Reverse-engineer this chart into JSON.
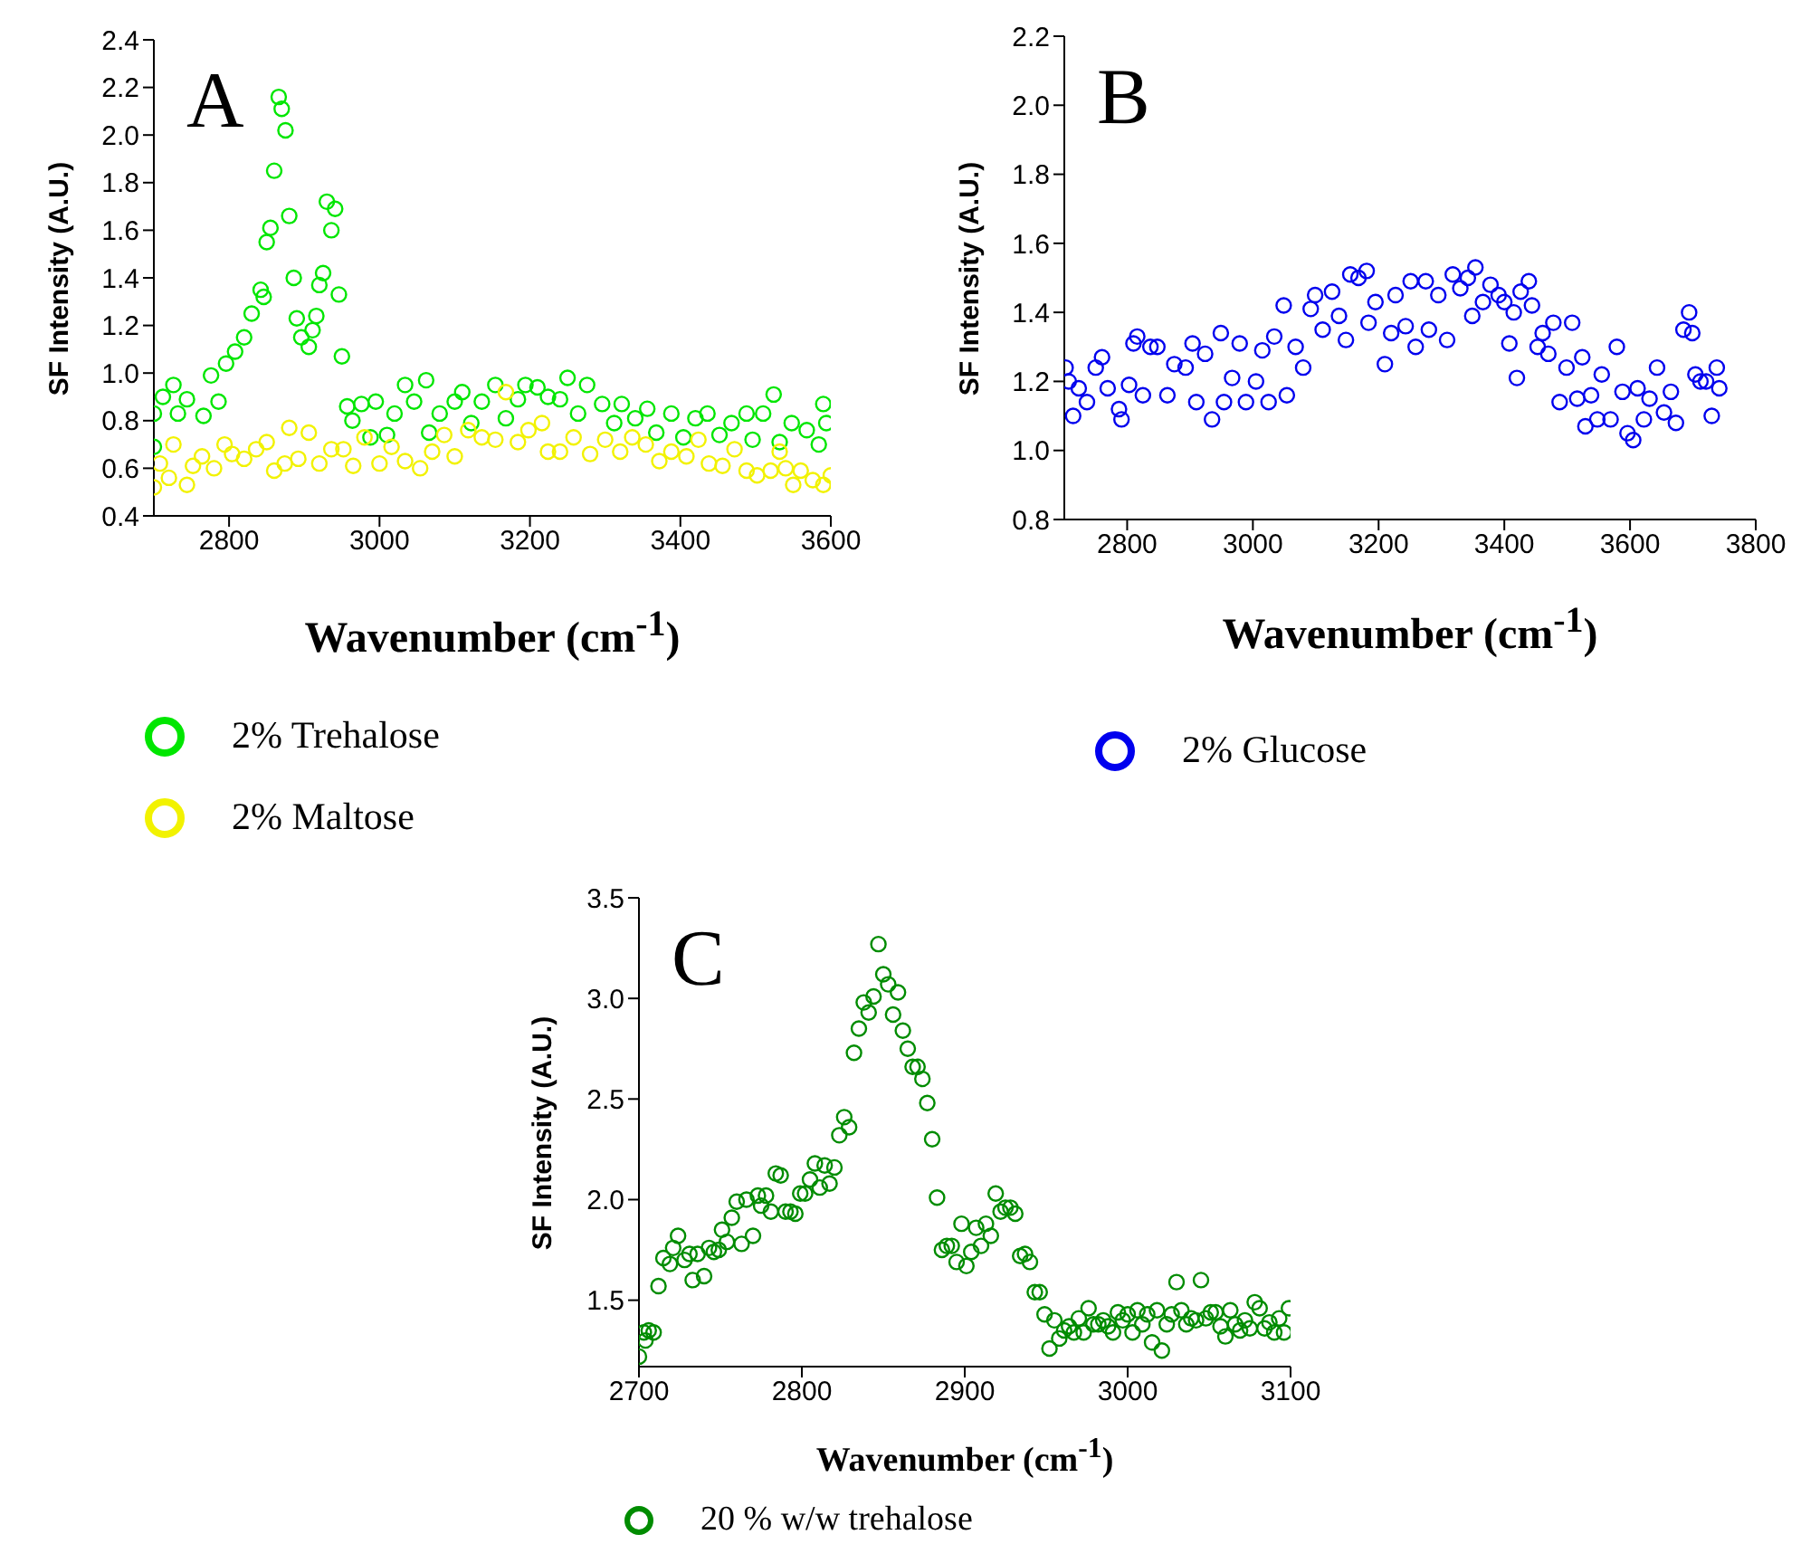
{
  "chart_data": [
    {
      "type": "scatter",
      "xlabel": "Wavenumber (cm$^{-1}$)",
      "ylabel": "SF Intensity (A.U.)",
      "annotations": [
        "A"
      ],
      "marker": "circle",
      "legend": "bottom left",
      "xlim": [
        2700,
        3600
      ],
      "xticks": [
        2800,
        3000,
        3200,
        3400,
        3600
      ],
      "ylim": [
        0.4,
        2.4
      ],
      "yticks": [
        0.4,
        0.6,
        0.8,
        {
          "value": 1,
          "label": "1.0"
        },
        1.2,
        1.4,
        1.6,
        1.8,
        {
          "value": 2,
          "label": "2.0"
        },
        2.2,
        2.4
      ],
      "series": [
        {
          "name": "2% Trehalose",
          "color": "#00e600",
          "x": [
            2700,
            2700,
            2712,
            2726,
            2732,
            2744,
            2766,
            2776,
            2786,
            2796,
            2808,
            2820,
            2830,
            2842,
            2846,
            2850,
            2855,
            2860,
            2866,
            2870,
            2875,
            2880,
            2886,
            2890,
            2896,
            2906,
            2911,
            2916,
            2920,
            2925,
            2930,
            2936,
            2941,
            2946,
            2950,
            2957,
            2964,
            2976,
            2988,
            2995,
            3010,
            3020,
            3034,
            3046,
            3062,
            3066,
            3080,
            3100,
            3110,
            3122,
            3136,
            3154,
            3168,
            3184,
            3194,
            3210,
            3224,
            3240,
            3250,
            3264,
            3276,
            3296,
            3312,
            3322,
            3340,
            3356,
            3368,
            3388,
            3404,
            3420,
            3436,
            3452,
            3468,
            3488,
            3496,
            3510,
            3524,
            3532,
            3548,
            3568,
            3584,
            3590,
            3594
          ],
          "values": [
            0.69,
            0.83,
            0.9,
            0.95,
            0.83,
            0.89,
            0.82,
            0.99,
            0.88,
            1.04,
            1.09,
            1.15,
            1.25,
            1.35,
            1.32,
            1.55,
            1.61,
            1.85,
            2.16,
            2.11,
            2.02,
            1.66,
            1.4,
            1.23,
            1.15,
            1.11,
            1.18,
            1.24,
            1.37,
            1.42,
            1.72,
            1.6,
            1.69,
            1.33,
            1.07,
            0.86,
            0.8,
            0.87,
            0.73,
            0.88,
            0.74,
            0.83,
            0.95,
            0.88,
            0.97,
            0.75,
            0.83,
            0.88,
            0.92,
            0.79,
            0.88,
            0.95,
            0.81,
            0.89,
            0.95,
            0.94,
            0.9,
            0.89,
            0.98,
            0.83,
            0.95,
            0.87,
            0.79,
            0.87,
            0.81,
            0.85,
            0.75,
            0.83,
            0.73,
            0.81,
            0.83,
            0.74,
            0.79,
            0.83,
            0.72,
            0.83,
            0.91,
            0.71,
            0.79,
            0.76,
            0.7,
            0.87,
            0.79
          ]
        },
        {
          "name": "2% Maltose",
          "color": "#f2f200",
          "x": [
            2700,
            2708,
            2720,
            2726,
            2744,
            2752,
            2764,
            2780,
            2794,
            2804,
            2820,
            2836,
            2850,
            2860,
            2874,
            2880,
            2892,
            2906,
            2920,
            2936,
            2952,
            2965,
            2980,
            3000,
            3016,
            3034,
            3054,
            3070,
            3086,
            3100,
            3118,
            3136,
            3154,
            3168,
            3184,
            3198,
            3216,
            3224,
            3240,
            3258,
            3280,
            3300,
            3320,
            3336,
            3354,
            3372,
            3388,
            3408,
            3424,
            3438,
            3456,
            3472,
            3488,
            3502,
            3520,
            3532,
            3540,
            3550,
            3560,
            3576,
            3590,
            3600
          ],
          "values": [
            0.52,
            0.62,
            0.56,
            0.7,
            0.53,
            0.61,
            0.65,
            0.6,
            0.7,
            0.66,
            0.64,
            0.68,
            0.71,
            0.59,
            0.62,
            0.77,
            0.64,
            0.75,
            0.62,
            0.68,
            0.68,
            0.61,
            0.73,
            0.62,
            0.69,
            0.63,
            0.6,
            0.67,
            0.74,
            0.65,
            0.76,
            0.73,
            0.72,
            0.92,
            0.71,
            0.76,
            0.79,
            0.67,
            0.67,
            0.73,
            0.66,
            0.72,
            0.67,
            0.73,
            0.7,
            0.63,
            0.67,
            0.65,
            0.72,
            0.62,
            0.61,
            0.68,
            0.59,
            0.57,
            0.59,
            0.67,
            0.6,
            0.53,
            0.59,
            0.55,
            0.53,
            0.57
          ]
        }
      ]
    },
    {
      "type": "scatter",
      "xlabel": "Wavenumber (cm$^{-1}$)",
      "ylabel": "SF Intensity (A.U.)",
      "annotations": [
        "B"
      ],
      "marker": "circle",
      "legend": "bottom left",
      "xlim": [
        2700,
        3800
      ],
      "xticks": [
        2800,
        3000,
        3200,
        3400,
        3600,
        3800
      ],
      "ylim": [
        0.8,
        2.2
      ],
      "yticks": [
        0.8,
        {
          "value": 1,
          "label": "1.0"
        },
        1.2,
        1.4,
        1.6,
        1.8,
        {
          "value": 2,
          "label": "2.0"
        },
        2.2
      ],
      "series": [
        {
          "name": "2% Glucose",
          "color": "#0000ee",
          "x": [
            2702,
            2707,
            2714,
            2723,
            2736,
            2750,
            2760,
            2769,
            2787,
            2791,
            2803,
            2810,
            2816,
            2825,
            2837,
            2848,
            2864,
            2875,
            2893,
            2904,
            2910,
            2924,
            2935,
            2949,
            2954,
            2967,
            2979,
            2989,
            3005,
            3015,
            3025,
            3034,
            3049,
            3054,
            3068,
            3080,
            3092,
            3099,
            3111,
            3126,
            3137,
            3148,
            3155,
            3168,
            3181,
            3184,
            3195,
            3210,
            3220,
            3227,
            3243,
            3251,
            3259,
            3275,
            3280,
            3295,
            3309,
            3318,
            3330,
            3342,
            3349,
            3354,
            3366,
            3378,
            3391,
            3400,
            3408,
            3415,
            3420,
            3426,
            3439,
            3444,
            3453,
            3461,
            3470,
            3478,
            3488,
            3499,
            3508,
            3516,
            3524,
            3529,
            3538,
            3548,
            3555,
            3569,
            3579,
            3588,
            3596,
            3605,
            3612,
            3622,
            3631,
            3643,
            3654,
            3665,
            3673,
            3685,
            3694,
            3699,
            3704,
            3712,
            3721,
            3730,
            3738,
            3742
          ],
          "values": [
            1.24,
            1.2,
            1.1,
            1.18,
            1.14,
            1.24,
            1.27,
            1.18,
            1.12,
            1.09,
            1.19,
            1.31,
            1.33,
            1.16,
            1.3,
            1.3,
            1.16,
            1.25,
            1.24,
            1.31,
            1.14,
            1.28,
            1.09,
            1.34,
            1.14,
            1.21,
            1.31,
            1.14,
            1.2,
            1.29,
            1.14,
            1.33,
            1.42,
            1.16,
            1.3,
            1.24,
            1.41,
            1.45,
            1.35,
            1.46,
            1.39,
            1.32,
            1.51,
            1.5,
            1.52,
            1.37,
            1.43,
            1.25,
            1.34,
            1.45,
            1.36,
            1.49,
            1.3,
            1.49,
            1.35,
            1.45,
            1.32,
            1.51,
            1.47,
            1.5,
            1.39,
            1.53,
            1.43,
            1.48,
            1.45,
            1.43,
            1.31,
            1.4,
            1.21,
            1.46,
            1.49,
            1.42,
            1.3,
            1.34,
            1.28,
            1.37,
            1.14,
            1.24,
            1.37,
            1.15,
            1.27,
            1.07,
            1.16,
            1.09,
            1.22,
            1.09,
            1.3,
            1.17,
            1.05,
            1.03,
            1.18,
            1.09,
            1.15,
            1.24,
            1.11,
            1.17,
            1.08,
            1.35,
            1.4,
            1.34,
            1.22,
            1.2,
            1.2,
            1.1,
            1.24,
            1.18
          ]
        }
      ]
    },
    {
      "type": "scatter",
      "xlabel": "Wavenumber (cm$^{-1}$)",
      "ylabel": "SF Intensity (A.U.)",
      "annotations": [
        "C"
      ],
      "marker": "circle",
      "legend": "bottom left",
      "xlim": [
        2700,
        3100
      ],
      "xticks": [
        2700,
        2800,
        2900,
        3000,
        3100
      ],
      "ylim": [
        1.17,
        3.5
      ],
      "yticks": [
        1.5,
        {
          "value": 2,
          "label": "2.0"
        },
        2.5,
        {
          "value": 3,
          "label": "3.0"
        },
        3.5
      ],
      "series": [
        {
          "name": "20 % w/w trehalose",
          "color": "#008c00",
          "x": [
            2700,
            2703,
            2704,
            2706,
            2709,
            2712,
            2715,
            2719,
            2721,
            2724,
            2728,
            2731,
            2733,
            2736,
            2740,
            2743,
            2746,
            2749,
            2751,
            2754,
            2757,
            2760,
            2763,
            2766,
            2770,
            2773,
            2775,
            2778,
            2781,
            2784,
            2787,
            2790,
            2793,
            2796,
            2799,
            2802,
            2805,
            2808,
            2811,
            2814,
            2817,
            2820,
            2823,
            2826,
            2829,
            2832,
            2835,
            2838,
            2841,
            2844,
            2847,
            2850,
            2853,
            2856,
            2859,
            2862,
            2865,
            2868,
            2871,
            2874,
            2877,
            2880,
            2883,
            2886,
            2889,
            2892,
            2895,
            2898,
            2901,
            2904,
            2907,
            2910,
            2913,
            2916,
            2919,
            2922,
            2925,
            2928,
            2931,
            2934,
            2937,
            2940,
            2943,
            2946,
            2949,
            2952,
            2955,
            2958,
            2961,
            2964,
            2967,
            2970,
            2973,
            2976,
            2979,
            2982,
            2985,
            2988,
            2991,
            2994,
            2997,
            3000,
            3003,
            3006,
            3009,
            3012,
            3015,
            3018,
            3021,
            3024,
            3027,
            3030,
            3033,
            3036,
            3039,
            3042,
            3045,
            3048,
            3051,
            3054,
            3057,
            3060,
            3063,
            3066,
            3069,
            3072,
            3075,
            3078,
            3081,
            3084,
            3087,
            3090,
            3093,
            3096,
            3099
          ],
          "values": [
            1.22,
            1.34,
            1.3,
            1.35,
            1.34,
            1.57,
            1.71,
            1.68,
            1.76,
            1.82,
            1.7,
            1.73,
            1.6,
            1.73,
            1.62,
            1.76,
            1.74,
            1.75,
            1.85,
            1.79,
            1.91,
            1.99,
            1.78,
            2.0,
            1.82,
            2.02,
            1.97,
            2.02,
            1.94,
            2.13,
            2.12,
            1.94,
            1.94,
            1.93,
            2.03,
            2.03,
            2.1,
            2.18,
            2.06,
            2.17,
            2.08,
            2.16,
            2.32,
            2.41,
            2.36,
            2.73,
            2.85,
            2.98,
            2.93,
            3.01,
            3.27,
            3.12,
            3.07,
            2.92,
            3.03,
            2.84,
            2.75,
            2.66,
            2.66,
            2.6,
            2.48,
            2.3,
            2.01,
            1.75,
            1.77,
            1.77,
            1.69,
            1.88,
            1.67,
            1.74,
            1.86,
            1.77,
            1.88,
            1.82,
            2.03,
            1.94,
            1.96,
            1.96,
            1.93,
            1.72,
            1.73,
            1.69,
            1.54,
            1.54,
            1.43,
            1.26,
            1.4,
            1.31,
            1.35,
            1.37,
            1.34,
            1.41,
            1.34,
            1.46,
            1.38,
            1.38,
            1.4,
            1.37,
            1.34,
            1.44,
            1.4,
            1.43,
            1.34,
            1.45,
            1.38,
            1.43,
            1.29,
            1.45,
            1.25,
            1.38,
            1.43,
            1.59,
            1.45,
            1.38,
            1.41,
            1.4,
            1.6,
            1.41,
            1.44,
            1.44,
            1.37,
            1.32,
            1.45,
            1.38,
            1.35,
            1.4,
            1.36,
            1.49,
            1.46,
            1.36,
            1.39,
            1.34,
            1.41,
            1.34,
            1.46
          ]
        }
      ]
    }
  ]
}
